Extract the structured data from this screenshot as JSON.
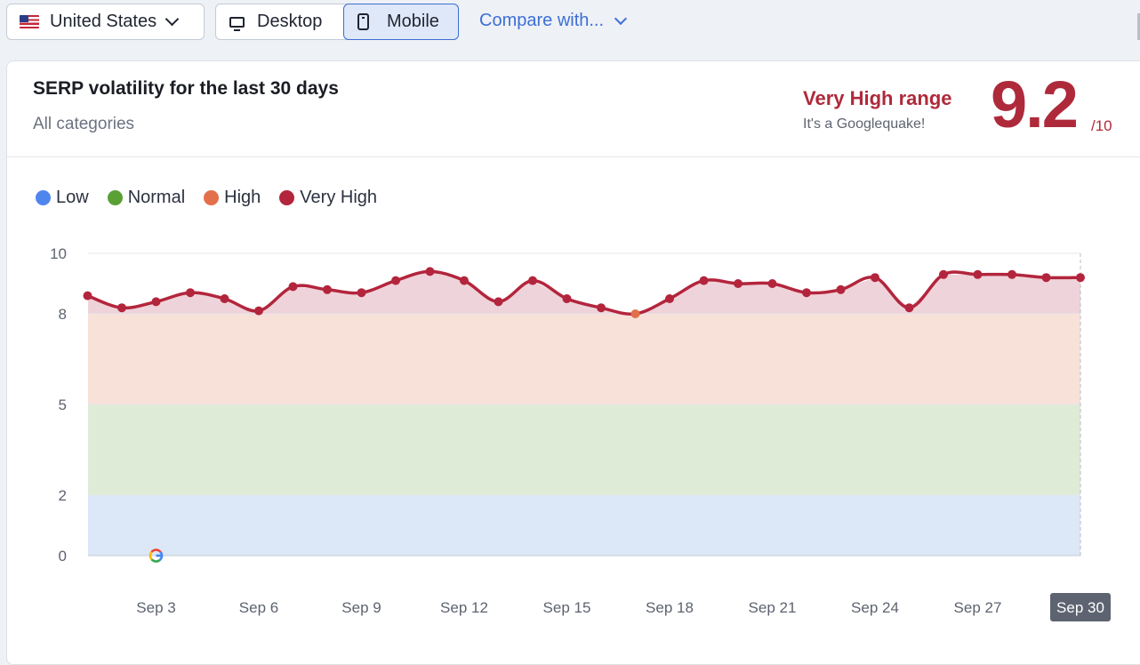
{
  "toolbar": {
    "country_label": "United States",
    "device_desktop_label": "Desktop",
    "device_mobile_label": "Mobile",
    "compare_label": "Compare with..."
  },
  "card": {
    "title": "SERP volatility for the last 30 days",
    "subtitle": "All categories",
    "range_label": "Very High range",
    "range_note": "It's a Googlequake!",
    "score": "9.2",
    "score_max": "/10"
  },
  "legend": [
    {
      "label": "Low",
      "color": "#4f86ee"
    },
    {
      "label": "Normal",
      "color": "#59a035"
    },
    {
      "label": "High",
      "color": "#e3704a"
    },
    {
      "label": "Very High",
      "color": "#b3253c"
    }
  ],
  "chart_data": {
    "type": "line",
    "y_ticks": [
      "0",
      "2",
      "5",
      "8",
      "10"
    ],
    "ylim": [
      0,
      10
    ],
    "bands": [
      {
        "name": "Low",
        "from": 0,
        "to": 2,
        "color": "#dce7f7"
      },
      {
        "name": "Normal",
        "from": 2,
        "to": 5,
        "color": "#deebd7"
      },
      {
        "name": "High",
        "from": 5,
        "to": 8,
        "color": "#f8e1d9"
      },
      {
        "name": "Very High",
        "from": 8,
        "to": 10,
        "color": "#efd3da"
      }
    ],
    "x_tick_labels": [
      "Sep 3",
      "Sep 6",
      "Sep 9",
      "Sep 12",
      "Sep 15",
      "Sep 18",
      "Sep 21",
      "Sep 24",
      "Sep 27",
      "Sep 30"
    ],
    "x_tick_days": [
      3,
      6,
      9,
      12,
      15,
      18,
      21,
      24,
      27,
      30
    ],
    "days": [
      1,
      2,
      3,
      4,
      5,
      6,
      7,
      8,
      9,
      10,
      11,
      12,
      13,
      14,
      15,
      16,
      17,
      18,
      19,
      20,
      21,
      22,
      23,
      24,
      25,
      26,
      27,
      28,
      29,
      30
    ],
    "values": [
      8.6,
      8.2,
      8.4,
      8.7,
      8.5,
      8.1,
      8.9,
      8.8,
      8.7,
      9.1,
      9.4,
      9.1,
      8.4,
      9.1,
      8.5,
      8.2,
      8.0,
      8.5,
      9.1,
      9.0,
      9.0,
      8.7,
      8.8,
      9.2,
      8.2,
      9.3,
      9.3,
      9.3,
      9.2,
      9.2
    ],
    "line_color": "#b3253c",
    "point_color_high": "#e3704a",
    "marker_day": 3,
    "highlighted_x_label": "Sep 30"
  }
}
